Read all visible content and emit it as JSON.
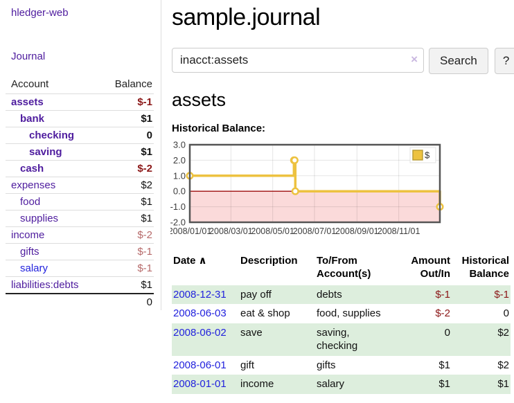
{
  "app": {
    "title": "hledger-web"
  },
  "sidebar": {
    "journal_label": "Journal",
    "accounts_table": {
      "headers": [
        "Account",
        "Balance"
      ],
      "rows": [
        {
          "account": "assets",
          "indent": 0,
          "bold": true,
          "balance": "$-1",
          "balance_tone": "neg-strong"
        },
        {
          "account": "bank",
          "indent": 1,
          "bold": true,
          "balance": "$1",
          "balance_tone": "normal"
        },
        {
          "account": "checking",
          "indent": 2,
          "bold": true,
          "balance": "0",
          "balance_tone": "normal"
        },
        {
          "account": "saving",
          "indent": 2,
          "bold": true,
          "balance": "$1",
          "balance_tone": "normal"
        },
        {
          "account": "cash",
          "indent": 1,
          "bold": true,
          "balance": "$-2",
          "balance_tone": "neg-strong"
        },
        {
          "account": "expenses",
          "indent": 0,
          "bold": false,
          "balance": "$2",
          "balance_tone": "normal"
        },
        {
          "account": "food",
          "indent": 1,
          "bold": false,
          "balance": "$1",
          "balance_tone": "normal"
        },
        {
          "account": "supplies",
          "indent": 1,
          "bold": false,
          "balance": "$1",
          "balance_tone": "normal"
        },
        {
          "account": "income",
          "indent": 0,
          "bold": false,
          "balance": "$-2",
          "balance_tone": "neg-soft"
        },
        {
          "account": "gifts",
          "indent": 1,
          "bold": false,
          "balance": "$-1",
          "balance_tone": "neg-soft"
        },
        {
          "account": "salary",
          "indent": 1,
          "bold": false,
          "balance": "$-1",
          "balance_tone": "neg-soft",
          "unvisited": true
        },
        {
          "account": "liabilities:debts",
          "indent": 0,
          "bold": false,
          "balance": "$1",
          "balance_tone": "normal"
        }
      ],
      "total": "0"
    }
  },
  "main": {
    "title": "sample.journal",
    "search": {
      "value": "inacct:assets",
      "clear_icon": "×",
      "button_label": "Search",
      "help_label": "?"
    },
    "account_heading": "assets",
    "chart_label": "Historical Balance:"
  },
  "chart_data": {
    "type": "line",
    "step": true,
    "title": "Historical Balance",
    "series": [
      {
        "name": "$",
        "color": "#edc240",
        "points": [
          {
            "date": "2008/01/01",
            "value": 1
          },
          {
            "date": "2008/06/01",
            "value": 2
          },
          {
            "date": "2008/06/02",
            "value": 2
          },
          {
            "date": "2008/06/03",
            "value": 0
          },
          {
            "date": "2008/12/31",
            "value": -1
          }
        ]
      }
    ],
    "x_range": [
      "2008/01/01",
      "2008/12/31"
    ],
    "ylim": [
      -2,
      3
    ],
    "yticks": [
      "3.0",
      "2.0",
      "1.0",
      "0.0",
      "-1.0",
      "-2.0"
    ],
    "xticks": [
      "2008/01/01",
      "2008/03/01",
      "2008/05/01",
      "2008/07/01",
      "2008/09/01",
      "2008/11/01"
    ],
    "legend": "$",
    "legend_position": "top-right",
    "grid": true,
    "negative_region_color": "#fbdada",
    "zero_line_color": "#9c0b0b",
    "border_color": "#555555",
    "tick_label_color": "#3c3c3c"
  },
  "transactions": {
    "headers": [
      "Date",
      "Description",
      "To/From Account(s)",
      "Amount Out/In",
      "Historical Balance"
    ],
    "sort_icon": "∧",
    "rows": [
      {
        "date": "2008-12-31",
        "description": "pay off",
        "accounts": "debts",
        "amount": "$-1",
        "amount_neg": true,
        "balance": "$-1",
        "balance_neg": true
      },
      {
        "date": "2008-06-03",
        "description": "eat & shop",
        "accounts": "food, supplies",
        "amount": "$-2",
        "amount_neg": true,
        "balance": "0",
        "balance_neg": false
      },
      {
        "date": "2008-06-02",
        "description": "save",
        "accounts": "saving,\nchecking",
        "amount": "0",
        "amount_neg": false,
        "balance": "$2",
        "balance_neg": false
      },
      {
        "date": "2008-06-01",
        "description": "gift",
        "accounts": "gifts",
        "amount": "$1",
        "amount_neg": false,
        "balance": "$2",
        "balance_neg": false
      },
      {
        "date": "2008-01-01",
        "description": "income",
        "accounts": "salary",
        "amount": "$1",
        "amount_neg": false,
        "balance": "$1",
        "balance_neg": false
      }
    ]
  }
}
